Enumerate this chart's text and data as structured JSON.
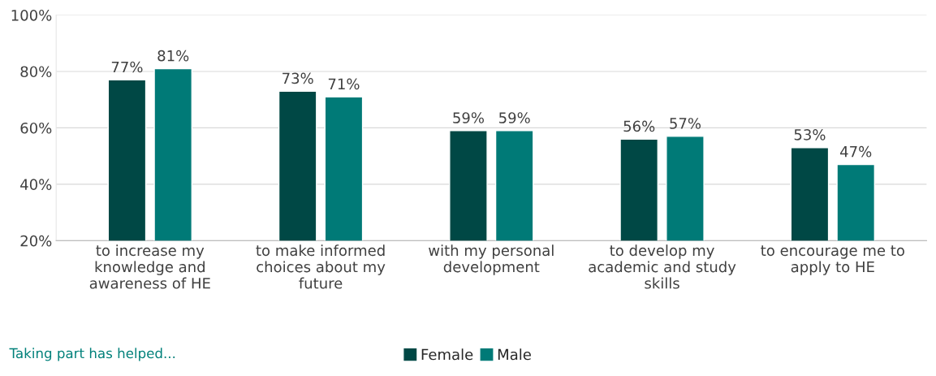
{
  "chart_data": {
    "type": "bar",
    "categories": [
      "to increase my\nknowledge and\nawareness of HE",
      "to make informed\nchoices about my\nfuture",
      "with my personal\ndevelopment",
      "to develop my\nacademic and study\nskills",
      "to encourage me to\napply to HE"
    ],
    "series": [
      {
        "name": "Female",
        "color": "#004845",
        "values": [
          77,
          73,
          59,
          56,
          53
        ],
        "value_labels": [
          "77%",
          "73%",
          "59%",
          "56%",
          "53%"
        ]
      },
      {
        "name": "Male",
        "color": "#007a77",
        "values": [
          81,
          71,
          59,
          57,
          47
        ],
        "value_labels": [
          "81%",
          "71%",
          "59%",
          "57%",
          "47%"
        ]
      }
    ],
    "ylim": [
      20,
      100
    ],
    "yticks": [
      {
        "value": 20,
        "label": "20%"
      },
      {
        "value": 40,
        "label": "40%"
      },
      {
        "value": 60,
        "label": "60%"
      },
      {
        "value": 80,
        "label": "80%"
      },
      {
        "value": 100,
        "label": "100%"
      }
    ],
    "grid": "y",
    "legend": "bottom",
    "annotations": [
      "Taking part has helped..."
    ]
  }
}
